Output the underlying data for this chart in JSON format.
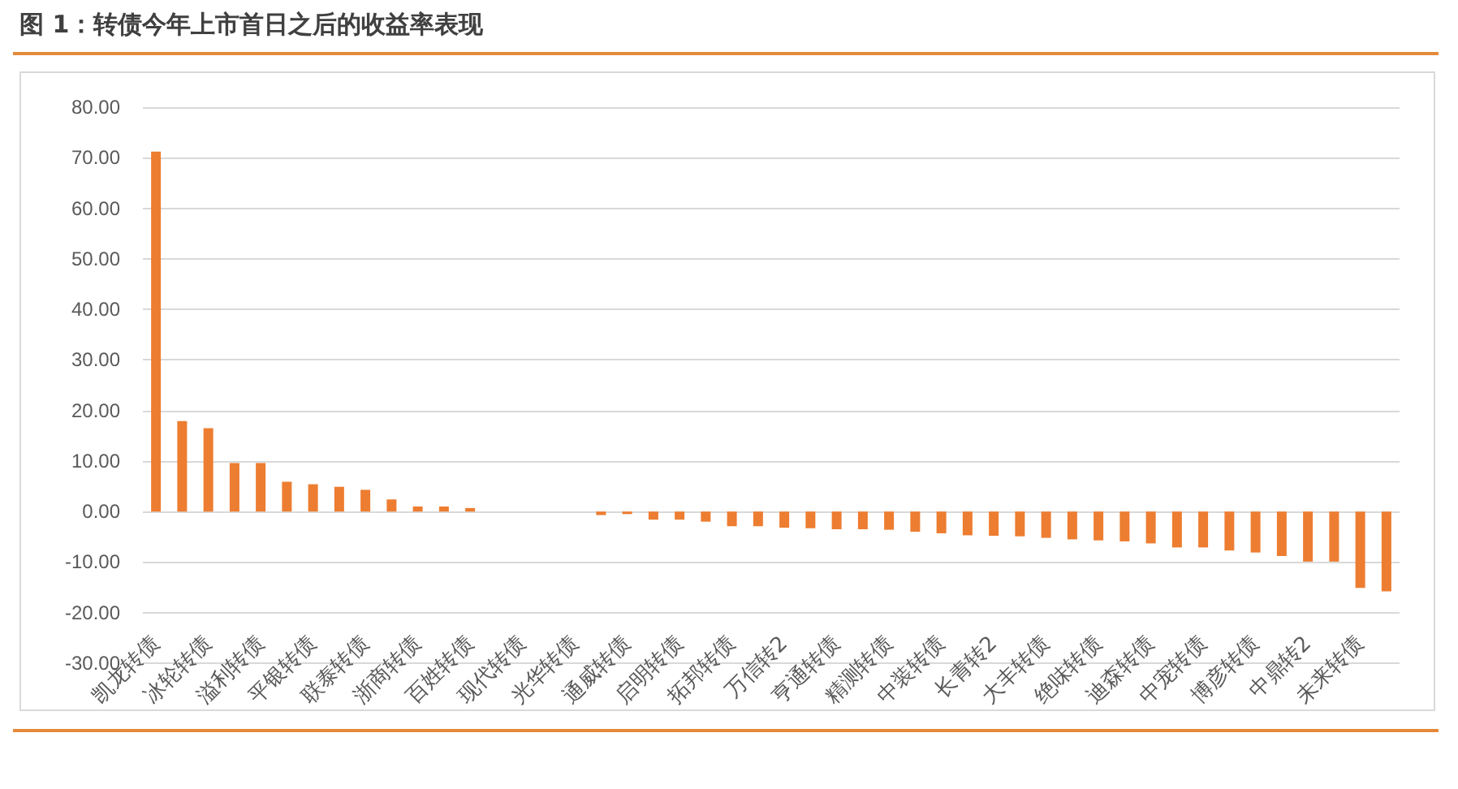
{
  "chart_data": {
    "type": "bar",
    "title": "图 1：转债今年上市首日之后的收益率表现",
    "categories": [
      "凯龙转债",
      null,
      "冰轮转债",
      null,
      "溢利转债",
      null,
      "平银转债",
      null,
      "联泰转债",
      null,
      "浙商转债",
      null,
      "百姓转债",
      null,
      "现代转债",
      null,
      "光华转债",
      null,
      "通威转债",
      null,
      "启明转债",
      null,
      "拓邦转债",
      null,
      "万信转2",
      null,
      "亨通转债",
      null,
      "精测转债",
      null,
      "中装转债",
      null,
      "长青转2",
      null,
      "大丰转债",
      null,
      "绝味转债",
      null,
      "迪森转债",
      null,
      "中宠转债",
      null,
      "博彦转债",
      null,
      "中鼎转2",
      null,
      "未来转债",
      null
    ],
    "values": [
      71.2,
      17.9,
      16.5,
      9.6,
      9.6,
      5.9,
      5.4,
      4.9,
      4.3,
      2.4,
      1.0,
      1.0,
      0.7,
      0,
      0,
      0,
      0,
      -0.7,
      -0.5,
      -1.6,
      -1.6,
      -2.0,
      -2.9,
      -2.9,
      -3.2,
      -3.3,
      -3.5,
      -3.5,
      -3.6,
      -4.0,
      -4.3,
      -4.7,
      -4.8,
      -4.9,
      -5.2,
      -5.5,
      -5.7,
      -5.9,
      -6.3,
      -7.1,
      -7.1,
      -7.7,
      -8.1,
      -8.8,
      -9.9,
      -9.9,
      -15.1,
      -15.8
    ],
    "color": "#ed7d31",
    "ylim": [
      -30,
      80
    ],
    "yticks": [
      {
        "value": -30,
        "label": "-30.00"
      },
      {
        "value": -20,
        "label": "-20.00"
      },
      {
        "value": -10,
        "label": "-10.00"
      },
      {
        "value": 0,
        "label": "0.00"
      },
      {
        "value": 10,
        "label": "10.00"
      },
      {
        "value": 20,
        "label": "20.00"
      },
      {
        "value": 30,
        "label": "30.00"
      },
      {
        "value": 40,
        "label": "40.00"
      },
      {
        "value": 50,
        "label": "50.00"
      },
      {
        "value": 60,
        "label": "60.00"
      },
      {
        "value": 70,
        "label": "70.00"
      },
      {
        "value": 80,
        "label": "80.00"
      }
    ],
    "grid": "y"
  }
}
